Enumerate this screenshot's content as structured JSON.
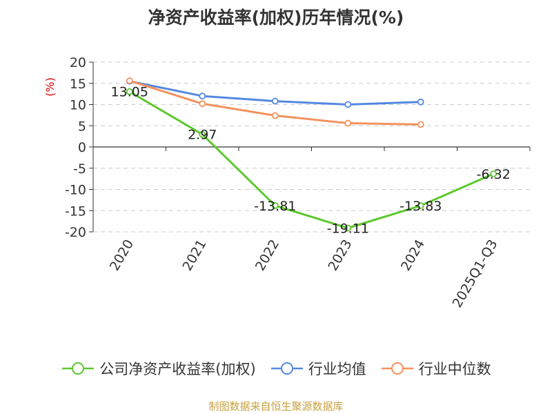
{
  "chart_data": {
    "type": "line",
    "title": "净资产收益率(加权)历年情况(%)",
    "ylabel": "(%)",
    "xlabel": "",
    "categories": [
      "2020",
      "2021",
      "2022",
      "2023",
      "2024",
      "2025Q1-Q3"
    ],
    "ylim": [
      -20,
      20
    ],
    "yticks": [
      20,
      15,
      10,
      5,
      0,
      -5,
      -10,
      -15,
      -20
    ],
    "grid": true,
    "legend_position": "bottom",
    "series": [
      {
        "name": "公司净资产收益率(加权)",
        "color": "#5cc82d",
        "values": [
          13.05,
          2.97,
          -13.81,
          -19.11,
          -13.83,
          -6.32
        ],
        "labels": [
          "13.05",
          "2.97",
          "-13.81",
          "-19.11",
          "-13.83",
          "-6.32"
        ]
      },
      {
        "name": "行业均值",
        "color": "#5488e0",
        "values": [
          15.5,
          12.0,
          10.8,
          10.0,
          10.6,
          null
        ]
      },
      {
        "name": "行业中位数",
        "color": "#f5915c",
        "values": [
          15.6,
          10.2,
          7.4,
          5.6,
          5.3,
          null
        ]
      }
    ]
  },
  "source": "制图数据来自恒生聚源数据库"
}
